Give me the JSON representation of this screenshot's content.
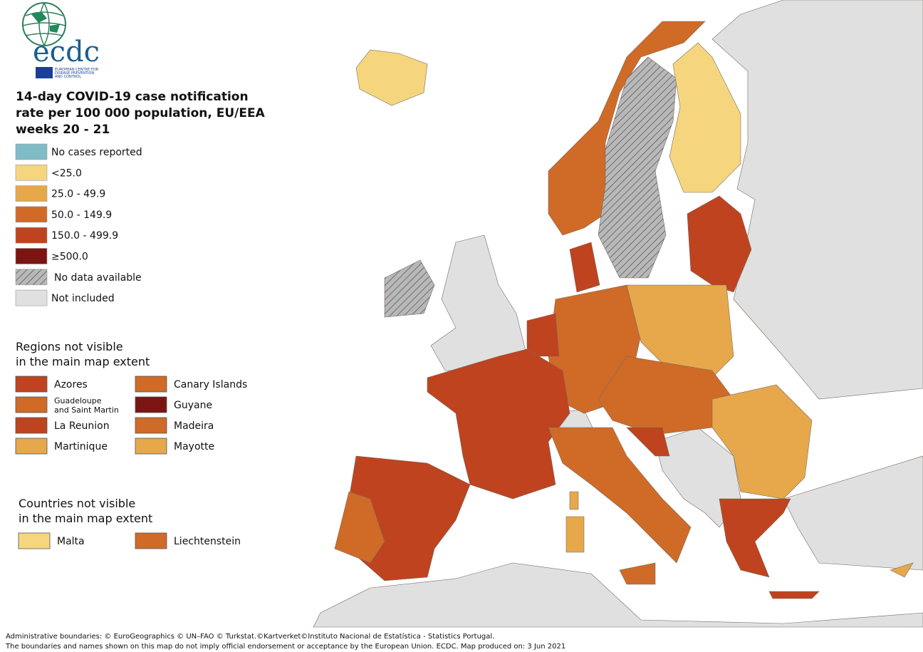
{
  "logo": {
    "acronym": "ecdc",
    "name_lines": [
      "EUROPEAN CENTRE FOR",
      "DISEASE PREVENTION",
      "AND CONTROL"
    ]
  },
  "title_lines": [
    "14-day COVID-19 case notification",
    "rate per 100 000 population, EU/EEA",
    "weeks 20 - 21"
  ],
  "legend": {
    "items": [
      {
        "label": "No cases reported",
        "color": "#7fbcc6"
      },
      {
        "label": "<25.0",
        "color": "#f5d67e"
      },
      {
        "label": "25.0 - 49.9",
        "color": "#e6a84b"
      },
      {
        "label": "50.0 - 149.9",
        "color": "#d06a27"
      },
      {
        "label": "150.0 - 499.9",
        "color": "#bf431f"
      },
      {
        "label": "≥500.0",
        "color": "#7a1512"
      },
      {
        "label": "No data available",
        "color": "#b8b8b8",
        "pattern": "hatch"
      },
      {
        "label": "Not included",
        "color": "#e0e0e0"
      }
    ]
  },
  "regions": {
    "title_lines": [
      "Regions not visible",
      "in the main map extent"
    ],
    "items": [
      {
        "label": "Azores",
        "color": "#bf431f"
      },
      {
        "label": "Canary Islands",
        "color": "#d06a27"
      },
      {
        "label_lines": [
          "Guadeloupe",
          "and Saint Martin"
        ],
        "color": "#d06a27"
      },
      {
        "label": "Guyane",
        "color": "#7a1512"
      },
      {
        "label": "La Reunion",
        "color": "#bf431f"
      },
      {
        "label": "Madeira",
        "color": "#d06a27"
      },
      {
        "label": "Martinique",
        "color": "#e6a84b"
      },
      {
        "label": "Mayotte",
        "color": "#e6a84b"
      }
    ]
  },
  "countries": {
    "title_lines": [
      "Countries not visible",
      "in the main map extent"
    ],
    "items": [
      {
        "label": "Malta",
        "color": "#f5d67e"
      },
      {
        "label": "Liechtenstein",
        "color": "#d06a27"
      }
    ]
  },
  "footer": [
    "Administrative boundaries: © EuroGeographics © UN–FAO © Turkstat.©Kartverket©Instituto Nacional de Estatística - Statistics Portugal.",
    "The boundaries and names shown on this map do not imply official endorsement or acceptance by the European Union. ECDC. Map produced on: 3 Jun 2021"
  ]
}
